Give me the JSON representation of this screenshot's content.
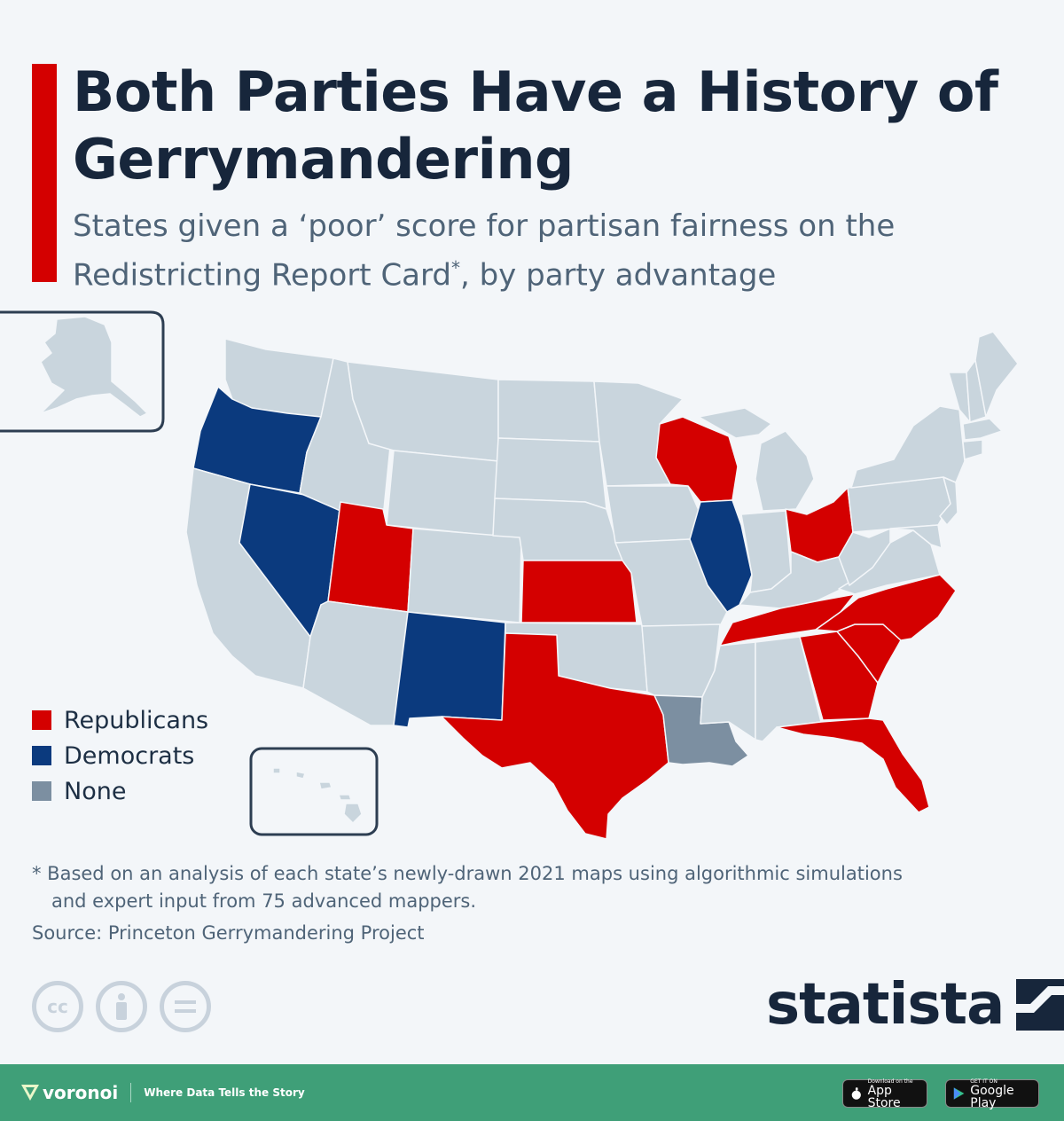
{
  "title": "Both Parties Have a History of Gerrymandering",
  "subtitle_main": "States given a ‘poor’ score for partisan fairness on the Redistricting Report Card",
  "subtitle_mark": "*",
  "subtitle_end": ", by party advantage",
  "colors": {
    "republicans": "#d40000",
    "democrats": "#0b3a7e",
    "none": "#7c8fa1",
    "other": "#c9d5dd",
    "accent": "#d40000"
  },
  "legend": [
    {
      "label": "Republicans",
      "color": "#d40000"
    },
    {
      "label": "Democrats",
      "color": "#0b3a7e"
    },
    {
      "label": "None",
      "color": "#7c8fa1"
    }
  ],
  "map_data": {
    "republicans": [
      "Wisconsin",
      "Ohio",
      "Utah",
      "Kansas",
      "Texas",
      "Tennessee",
      "North Carolina",
      "South Carolina",
      "Georgia",
      "Florida"
    ],
    "democrats": [
      "Oregon",
      "Nevada",
      "New Mexico",
      "Illinois"
    ],
    "none": [
      "Louisiana"
    ]
  },
  "note_line1": "* Based on an analysis of each state’s newly-drawn 2021 maps using algorithmic simulations",
  "note_line2": "and expert input from 75 advanced mappers.",
  "source": "Source: Princeton Gerrymandering Project",
  "brand": "statista",
  "footer": {
    "logo": "voronoi",
    "tagline": "Where Data Tells the Story",
    "appstore_small": "Download on the",
    "appstore_big": "App Store",
    "googleplay_small": "GET IT ON",
    "googleplay_big": "Google Play"
  }
}
